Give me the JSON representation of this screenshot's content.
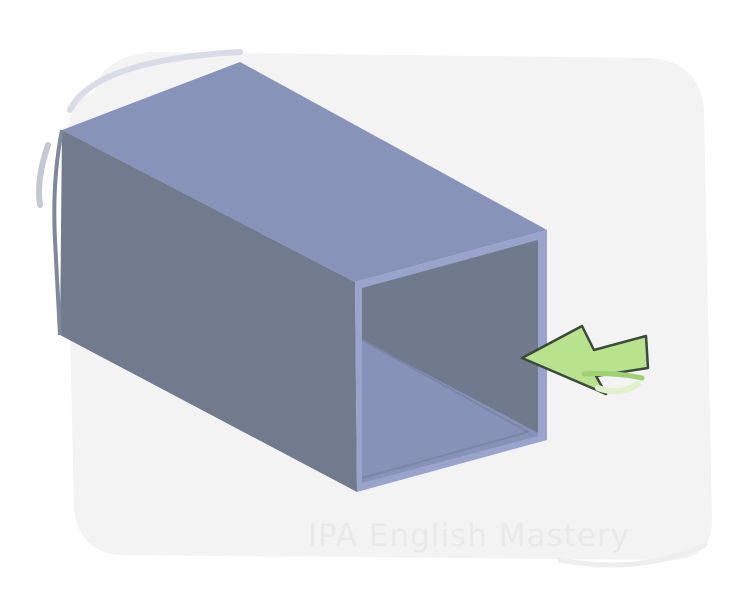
{
  "watermark": {
    "text": "IPA English Mastery"
  },
  "colors": {
    "background": "#ffffff",
    "backdrop": "#f3f3f3",
    "tube_top": "#8893b9",
    "tube_side": "#727b8d",
    "tube_edge": "#9aa3cb",
    "tube_inner_back": "#717a8c",
    "tube_inner_floor": "#8792b8",
    "arrow_fill": "#b8e38c",
    "arrow_stroke": "#3b4a3b"
  },
  "icons": {
    "illustration": "square-hollow-tube",
    "pointer": "green-arrow-icon"
  }
}
